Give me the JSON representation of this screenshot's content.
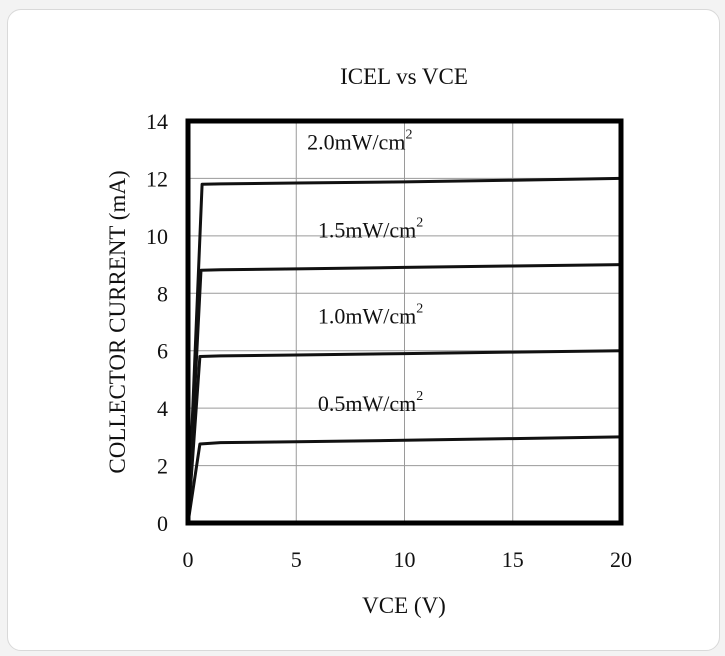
{
  "chart_data": {
    "type": "line",
    "title": "ICEL vs VCE",
    "xlabel": "VCE (V)",
    "ylabel": "COLLECTOR CURRENT (mA)",
    "xlim": [
      0,
      20
    ],
    "ylim": [
      0,
      14
    ],
    "xticks": [
      0,
      5,
      10,
      15,
      20
    ],
    "yticks": [
      0,
      2,
      4,
      6,
      8,
      10,
      12,
      14
    ],
    "grid": true,
    "series": [
      {
        "label": "0.5mW/cm",
        "label_sup": "2",
        "points": [
          [
            0,
            0
          ],
          [
            0.55,
            2.75
          ],
          [
            1.5,
            2.8
          ],
          [
            5,
            2.83
          ],
          [
            10,
            2.88
          ],
          [
            15,
            2.94
          ],
          [
            20,
            3.0
          ]
        ]
      },
      {
        "label": "1.0mW/cm",
        "label_sup": "2",
        "points": [
          [
            0,
            0
          ],
          [
            0.55,
            5.8
          ],
          [
            1.5,
            5.82
          ],
          [
            5,
            5.85
          ],
          [
            10,
            5.9
          ],
          [
            15,
            5.95
          ],
          [
            20,
            6.0
          ]
        ]
      },
      {
        "label": "1.5mW/cm",
        "label_sup": "2",
        "points": [
          [
            0,
            0
          ],
          [
            0.6,
            8.8
          ],
          [
            1.5,
            8.82
          ],
          [
            5,
            8.85
          ],
          [
            10,
            8.9
          ],
          [
            15,
            8.95
          ],
          [
            20,
            9.0
          ]
        ]
      },
      {
        "label": "2.0mW/cm",
        "label_sup": "2",
        "points": [
          [
            0,
            0
          ],
          [
            0.65,
            11.8
          ],
          [
            1.5,
            11.81
          ],
          [
            5,
            11.84
          ],
          [
            10,
            11.88
          ],
          [
            15,
            11.94
          ],
          [
            20,
            12.0
          ]
        ]
      }
    ],
    "curve_label_positions": [
      [
        6,
        3.9
      ],
      [
        6,
        6.95
      ],
      [
        6,
        9.95
      ],
      [
        5.5,
        13.0
      ]
    ]
  }
}
